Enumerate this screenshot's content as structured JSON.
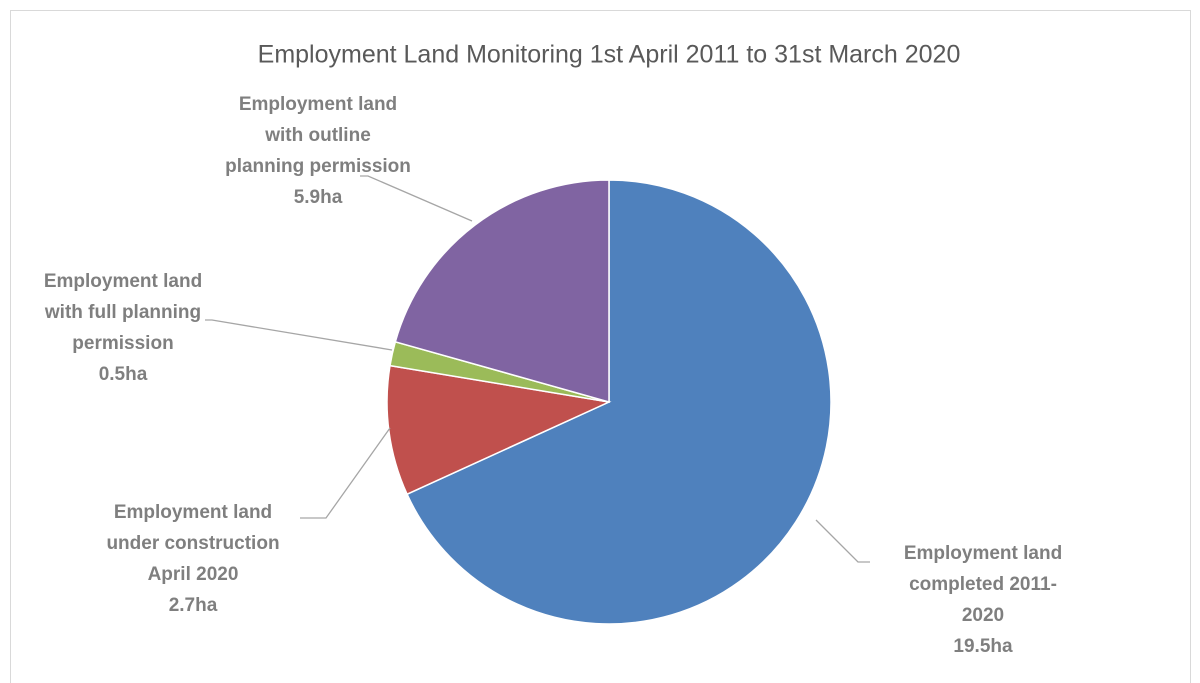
{
  "chart_data": {
    "type": "pie",
    "title": "Employment Land Monitoring 1st April 2011 to 31st March 2020",
    "categories": [
      "Employment land\ncompleted 2011-\n2020",
      "Employment land\nunder construction\nApril 2020",
      "Employment land\nwith full planning\npermission",
      "Employment land\nwith outline\nplanning permission"
    ],
    "values": [
      19.5,
      2.7,
      0.5,
      5.9
    ],
    "value_labels": [
      "19.5ha",
      "2.7ha",
      "0.5ha",
      "5.9ha"
    ],
    "colors": [
      "#4f81bd",
      "#c0504d",
      "#9bbb59",
      "#8064a2"
    ]
  }
}
